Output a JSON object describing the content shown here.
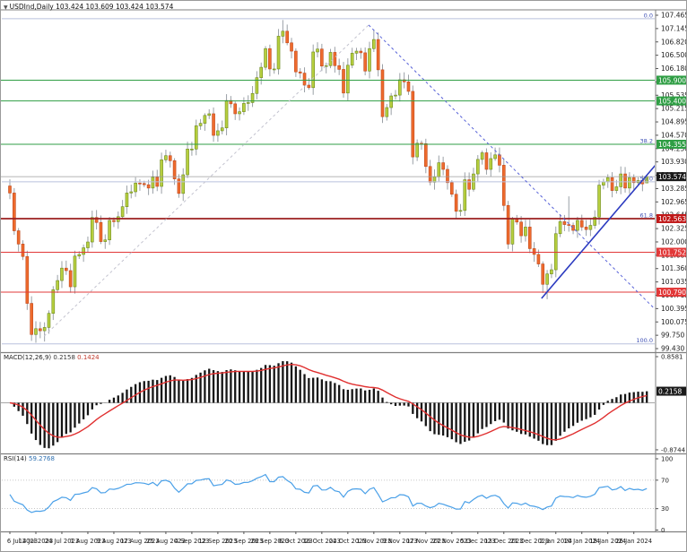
{
  "header": {
    "symbol": "USDInd,Daily",
    "ohlc": "103.424 103.609 103.424 103.574"
  },
  "indicators": {
    "macd": {
      "name": "MACD(12,26,9)",
      "main": "0.2158",
      "signal": "0.1424",
      "axis_labels": [
        "0.8581",
        "-0.8744"
      ],
      "current_label": "0.2158"
    },
    "rsi": {
      "name": "RSI(14)",
      "value": "59.2768",
      "axis_labels": [
        "100",
        "70",
        "30",
        "0"
      ],
      "overbought": 70,
      "oversold": 30
    }
  },
  "chart_data": {
    "type": "candlestick",
    "symbol": "USDInd",
    "timeframe": "Daily",
    "last_quote": {
      "open": 103.424,
      "high": 103.609,
      "low": 103.424,
      "close": 103.574
    },
    "price_axis": {
      "top_price": 107.465,
      "step": 0.3214,
      "labels": [
        "107.465",
        "107.145",
        "106.820",
        "106.500",
        "106.180",
        "105.860",
        "105.535",
        "105.215",
        "104.895",
        "104.570",
        "104.250",
        "103.930",
        "103.610",
        "103.285",
        "102.965",
        "102.645",
        "102.325",
        "102.000",
        "101.680",
        "101.360",
        "101.035",
        "100.715",
        "100.395",
        "100.075",
        "99.750",
        "99.430"
      ]
    },
    "date_axis": {
      "tick_every": 6,
      "labels": [
        "6 Jul 2023",
        "14 Jul 2023",
        "24 Jul 2023",
        "1 Aug 2023",
        "9 Aug 2023",
        "17 Aug 2023",
        "25 Aug 2023",
        "4 Sep 2023",
        "12 Sep 2023",
        "20 Sep 2023",
        "28 Sep 2023",
        "6 Oct 2023",
        "16 Oct 2023",
        "24 Oct 2023",
        "1 Nov 2023",
        "9 Nov 2023",
        "17 Nov 2023",
        "27 Nov 2023",
        "5 Dec 2023",
        "13 Dec 2023",
        "21 Dec 2023",
        "2 Jan 2024",
        "10 Jan 2024",
        "18 Jan 2024",
        "26 Jan 2024"
      ]
    },
    "closes": [
      103.18,
      102.27,
      101.95,
      101.65,
      100.52,
      99.77,
      99.91,
      99.86,
      99.94,
      100.28,
      100.85,
      101.07,
      101.37,
      101.31,
      100.92,
      101.66,
      101.7,
      101.86,
      102.0,
      102.59,
      102.47,
      102.01,
      102.05,
      102.52,
      102.49,
      102.61,
      102.85,
      103.18,
      103.21,
      103.42,
      103.41,
      103.38,
      103.3,
      103.56,
      103.34,
      103.98,
      104.08,
      103.96,
      103.52,
      103.17,
      103.62,
      104.24,
      104.24,
      104.8,
      104.86,
      105.05,
      105.09,
      104.57,
      104.68,
      104.75,
      105.41,
      105.33,
      105.09,
      105.14,
      105.34,
      105.36,
      105.58,
      105.96,
      106.21,
      106.66,
      106.17,
      106.17,
      106.96,
      107.08,
      106.8,
      106.6,
      106.1,
      106.07,
      105.78,
      105.72,
      106.58,
      106.65,
      106.24,
      106.25,
      106.57,
      106.25,
      106.16,
      105.59,
      106.26,
      106.55,
      106.6,
      106.56,
      106.12,
      106.66,
      106.88,
      106.15,
      105.02,
      105.24,
      105.52,
      105.54,
      105.91,
      105.86,
      105.63,
      104.05,
      104.38,
      104.37,
      103.82,
      103.44,
      103.57,
      103.91,
      103.75,
      103.43,
      103.15,
      102.74,
      102.76,
      103.5,
      103.27,
      103.64,
      103.99,
      104.15,
      103.75,
      104.01,
      104.1,
      103.85,
      102.88,
      101.95,
      102.55,
      102.48,
      102.15,
      102.36,
      101.84,
      101.7,
      101.47,
      100.98,
      101.23,
      101.33,
      102.2,
      102.49,
      102.42,
      102.4,
      102.28,
      102.52,
      102.36,
      102.3,
      102.4,
      102.6,
      103.37,
      103.45,
      103.55,
      103.24,
      103.33,
      103.64,
      103.3,
      103.55,
      103.43,
      103.48,
      103.4,
      103.574
    ],
    "ohlc_overrides": {
      "0": {
        "o": 103.35
      },
      "6": {
        "l": 99.57
      },
      "8": {
        "l": 99.6
      },
      "63": {
        "h": 107.35
      },
      "84": {
        "h": 107.11
      },
      "123": {
        "l": 100.77
      },
      "124": {
        "l": 100.62
      },
      "129": {
        "h": 103.1
      },
      "147": {
        "o": 103.424,
        "h": 103.609,
        "l": 103.424,
        "c": 103.574
      }
    },
    "levels": {
      "resistance_green": [
        {
          "price": 105.9,
          "label": "105.900"
        },
        {
          "price": 105.4,
          "label": "105.400"
        },
        {
          "price": 104.355,
          "label": "104.355"
        }
      ],
      "support_red": [
        {
          "price": 102.563,
          "label": "102.563",
          "thick": true
        },
        {
          "price": 101.752,
          "label": "101.752"
        },
        {
          "price": 100.79,
          "label": "100.790"
        }
      ],
      "current": {
        "price": 103.574,
        "label": "103.574"
      },
      "fibonacci": [
        {
          "pct": "0.0",
          "price": 107.38
        },
        {
          "pct": "38.2",
          "price": 104.355
        },
        {
          "pct": "50.0",
          "price": 103.45
        },
        {
          "pct": "61.8",
          "price": 102.563
        },
        {
          "pct": "100.0",
          "price": 99.545
        }
      ]
    },
    "objects": [
      {
        "name": "fib-base-trendline",
        "style": "dashed-silver",
        "from": {
          "index": 7.9,
          "price": 99.73
        },
        "to": {
          "index": 82.8,
          "price": 107.23
        }
      },
      {
        "name": "descending-dashed-trendline",
        "style": "dashed-blue",
        "from": {
          "index": 82.8,
          "price": 107.23
        },
        "to": {
          "index": 154,
          "price": 99.85
        }
      },
      {
        "name": "ascending-trendline",
        "style": "solid-blue",
        "from": {
          "index": 122.7,
          "price": 100.64
        },
        "to": {
          "index": 152.4,
          "price": 104.27
        }
      }
    ],
    "colors": {
      "bull_fill": "#b7cf3e",
      "bull_stroke": "#6e8b1f",
      "bear_fill": "#ee6b2d",
      "bear_stroke": "#c2491c",
      "wick": "#9aa0a6",
      "green_line": "#2f9e44",
      "red_line": "#e23838",
      "thick_red_line": "#9c1f1f",
      "fib_line": "#b9c0de",
      "fib_text": "#3f51b5",
      "dashed_blue": "#5863d8",
      "solid_blue": "#2b3ac0",
      "dashed_silver": "#c3c3cf",
      "current_line": "#9b9b9b",
      "current_label_bg": "#1a1a1a",
      "macd_bar": "#141414",
      "macd_signal": "#e03030",
      "rsi_line": "#4aa0e8",
      "axis_text": "#222222",
      "separator": "#7f7f7f"
    }
  }
}
